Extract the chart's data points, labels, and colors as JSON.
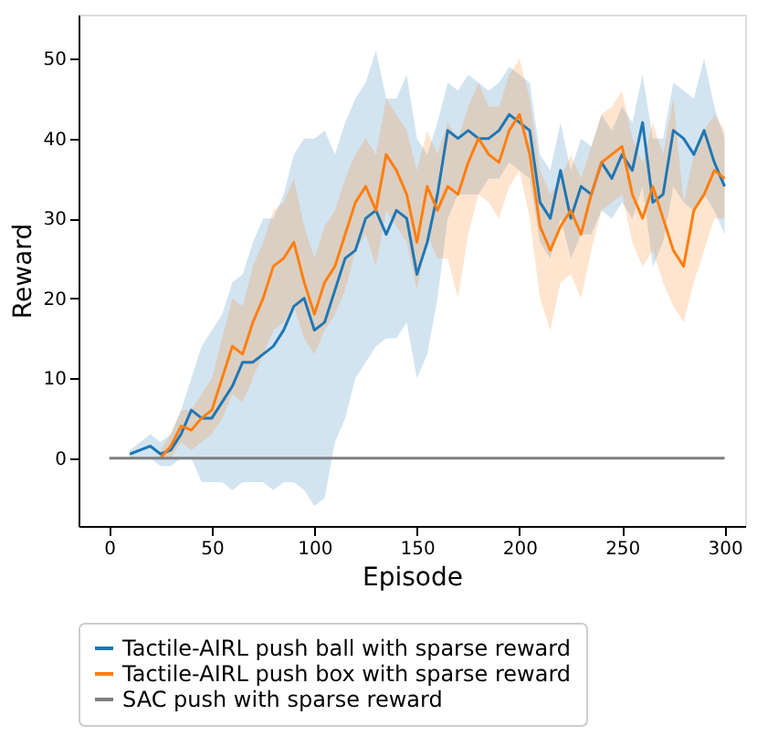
{
  "chart_data": {
    "type": "line",
    "xlabel": "Episode",
    "ylabel": "Reward",
    "xlim": [
      -15,
      310
    ],
    "ylim": [
      -8.5,
      55.5
    ],
    "xticks": [
      0,
      50,
      100,
      150,
      200,
      250,
      300
    ],
    "yticks": [
      0,
      10,
      20,
      30,
      40,
      50
    ],
    "grid": false,
    "legend": "bottom",
    "series": [
      {
        "name": "Tactile-AIRL push ball with sparse reward",
        "color": "#1f77b4",
        "x": [
          10,
          15,
          20,
          25,
          30,
          35,
          40,
          45,
          50,
          55,
          60,
          65,
          70,
          75,
          80,
          85,
          90,
          95,
          100,
          105,
          110,
          115,
          120,
          125,
          130,
          135,
          140,
          145,
          150,
          155,
          160,
          165,
          170,
          175,
          180,
          185,
          190,
          195,
          200,
          205,
          210,
          215,
          220,
          225,
          230,
          235,
          240,
          245,
          250,
          255,
          260,
          265,
          270,
          275,
          280,
          285,
          290,
          295,
          300
        ],
        "values": [
          0.5,
          1,
          1.5,
          0.5,
          1,
          3,
          6,
          5,
          5,
          7,
          9,
          12,
          12,
          13,
          14,
          16,
          19,
          20,
          16,
          17,
          21,
          25,
          26,
          30,
          31,
          28,
          31,
          30,
          23,
          27,
          33,
          41,
          40,
          41,
          40,
          40,
          41,
          43,
          42,
          41,
          32,
          30,
          36,
          30,
          34,
          33,
          37,
          35,
          38,
          36,
          42,
          32,
          33,
          41,
          40,
          38,
          41,
          37,
          34
        ],
        "lower": [
          0,
          0,
          0,
          -1,
          -1,
          0,
          0,
          -3,
          -3,
          -3,
          -4,
          -3,
          -3,
          -3,
          -4,
          -3,
          -3,
          -4,
          -6,
          -5,
          2,
          5,
          10,
          12,
          14,
          15,
          15,
          17,
          10,
          13,
          20,
          30,
          33,
          33,
          33,
          35,
          35,
          37,
          36,
          35,
          27,
          25,
          30,
          25,
          28,
          28,
          31,
          30,
          32,
          30,
          34,
          24,
          27,
          34,
          32,
          31,
          33,
          31,
          28
        ],
        "upper": [
          1,
          2,
          3,
          2,
          3,
          6,
          10,
          14,
          16,
          18,
          22,
          23,
          27,
          30,
          30,
          33,
          38,
          40,
          40,
          41,
          38,
          42,
          45,
          47,
          51,
          45,
          45,
          48,
          40,
          38,
          42,
          47,
          46,
          48,
          47,
          46,
          47,
          49,
          48,
          47,
          38,
          36,
          42,
          36,
          40,
          39,
          43,
          41,
          44,
          42,
          48,
          40,
          40,
          47,
          46,
          45,
          50,
          44,
          40
        ]
      },
      {
        "name": "Tactile-AIRL push box with sparse reward",
        "color": "#ff7f0e",
        "x": [
          25,
          30,
          35,
          40,
          45,
          50,
          55,
          60,
          65,
          70,
          75,
          80,
          85,
          90,
          95,
          100,
          105,
          110,
          115,
          120,
          125,
          130,
          135,
          140,
          145,
          150,
          155,
          160,
          165,
          170,
          175,
          180,
          185,
          190,
          195,
          200,
          205,
          210,
          215,
          220,
          225,
          230,
          235,
          240,
          245,
          250,
          255,
          260,
          265,
          270,
          275,
          280,
          285,
          290,
          295,
          300
        ],
        "values": [
          0,
          1.5,
          4,
          3.5,
          5,
          6,
          10,
          14,
          13,
          17,
          20,
          24,
          25,
          27,
          22,
          18,
          22,
          24,
          28,
          32,
          34,
          31,
          38,
          36,
          33,
          27,
          34,
          31,
          34,
          33,
          37,
          40,
          38,
          37,
          41,
          43,
          38,
          29,
          26,
          29,
          31,
          28,
          33,
          37,
          38,
          39,
          33,
          30,
          34,
          30,
          26,
          24,
          31,
          33,
          36,
          35
        ],
        "lower": [
          0,
          0,
          2,
          1,
          2,
          3,
          5,
          8,
          7,
          10,
          13,
          16,
          17,
          19,
          15,
          13,
          16,
          18,
          21,
          26,
          28,
          24,
          31,
          29,
          27,
          21,
          28,
          25,
          25,
          20,
          28,
          33,
          32,
          30,
          34,
          36,
          30,
          20,
          16,
          22,
          23,
          20,
          26,
          31,
          32,
          33,
          27,
          24,
          26,
          22,
          19,
          17,
          22,
          26,
          30,
          30
        ],
        "upper": [
          1,
          3,
          6,
          6,
          8,
          10,
          15,
          20,
          19,
          24,
          27,
          31,
          32,
          35,
          29,
          25,
          29,
          31,
          35,
          38,
          40,
          38,
          45,
          43,
          41,
          36,
          41,
          38,
          42,
          40,
          44,
          47,
          44,
          44,
          48,
          50,
          45,
          36,
          33,
          35,
          38,
          35,
          39,
          43,
          44,
          46,
          40,
          37,
          42,
          38,
          45,
          32,
          38,
          41,
          43,
          41
        ]
      },
      {
        "name": "SAC push with sparse reward",
        "color": "#7f7f7f",
        "x": [
          0,
          300
        ],
        "values": [
          0,
          0
        ]
      }
    ]
  }
}
